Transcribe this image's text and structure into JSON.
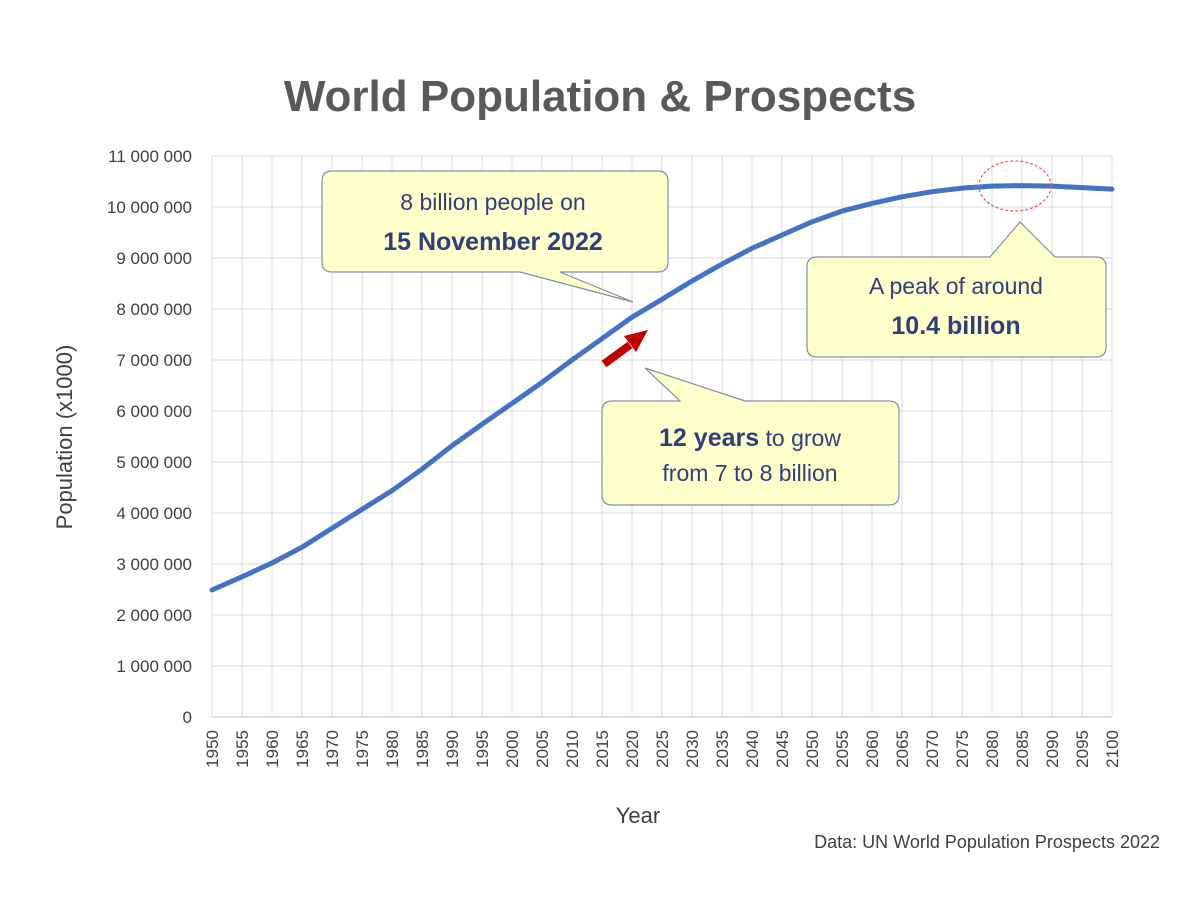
{
  "chart_data": {
    "type": "line",
    "title": "World Population & Prospects",
    "xlabel": "Year",
    "ylabel": "Population (x1000)",
    "source": "Data: UN World Population Prospects 2022",
    "xlim": [
      1950,
      2100
    ],
    "ylim": [
      0,
      11000000
    ],
    "grid": true,
    "xticks": [
      1950,
      1955,
      1960,
      1965,
      1970,
      1975,
      1980,
      1985,
      1990,
      1995,
      2000,
      2005,
      2010,
      2015,
      2020,
      2025,
      2030,
      2035,
      2040,
      2045,
      2050,
      2055,
      2060,
      2065,
      2070,
      2075,
      2080,
      2085,
      2090,
      2095,
      2100
    ],
    "yticks": [
      0,
      1000000,
      2000000,
      3000000,
      4000000,
      5000000,
      6000000,
      7000000,
      8000000,
      9000000,
      10000000,
      11000000
    ],
    "ytick_labels": [
      "0",
      "1 000 000",
      "2 000 000",
      "3 000 000",
      "4 000 000",
      "5 000 000",
      "6 000 000",
      "7 000 000",
      "8 000 000",
      "9 000 000",
      "10 000 000",
      "11 000 000"
    ],
    "series": [
      {
        "color": "#4472c4",
        "x": [
          1950,
          1955,
          1960,
          1965,
          1970,
          1975,
          1980,
          1985,
          1990,
          1995,
          2000,
          2005,
          2010,
          2015,
          2020,
          2025,
          2030,
          2035,
          2040,
          2045,
          2050,
          2055,
          2060,
          2065,
          2070,
          2075,
          2080,
          2085,
          2090,
          2095,
          2100
        ],
        "y": [
          2490000,
          2750000,
          3020000,
          3330000,
          3700000,
          4070000,
          4440000,
          4860000,
          5320000,
          5740000,
          6150000,
          6560000,
          7000000,
          7420000,
          7840000,
          8190000,
          8550000,
          8880000,
          9190000,
          9450000,
          9710000,
          9920000,
          10070000,
          10200000,
          10300000,
          10370000,
          10410000,
          10420000,
          10410000,
          10380000,
          10350000
        ]
      }
    ],
    "annotations": [
      {
        "line1": "8 billion people on",
        "line2": "15 November 2022"
      },
      {
        "line1": "A peak of around",
        "line2": "10.4 billion"
      },
      {
        "bold": "12 years",
        "rest": " to grow",
        "line2": "from 7 to 8 billion"
      }
    ]
  }
}
